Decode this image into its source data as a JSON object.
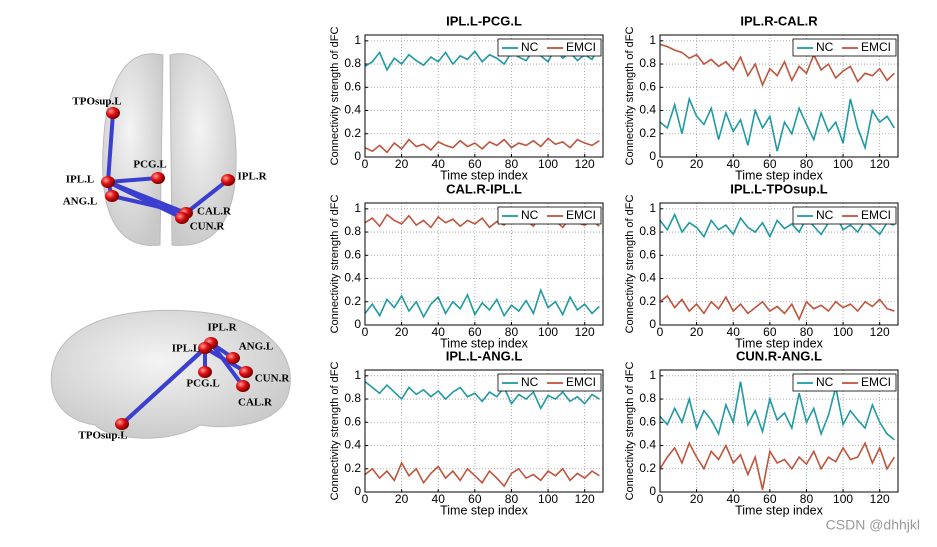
{
  "chart_data": [
    {
      "type": "line",
      "title": "IPL.L-PCG.L",
      "xlabel": "Time step index",
      "ylabel": "Connectivity strength of dFC",
      "x": [
        0,
        4,
        8,
        12,
        16,
        20,
        24,
        28,
        32,
        36,
        40,
        44,
        48,
        52,
        56,
        60,
        64,
        68,
        72,
        76,
        80,
        84,
        88,
        92,
        96,
        100,
        104,
        108,
        112,
        116,
        120,
        124,
        128
      ],
      "xlim": [
        0,
        130
      ],
      "xticks": [
        0,
        20,
        40,
        60,
        80,
        100,
        120
      ],
      "ylim": [
        0,
        1.05
      ],
      "yticks": [
        0,
        0.2,
        0.4,
        0.6,
        0.8,
        1
      ],
      "grid": true,
      "legend": "upper right",
      "series": [
        {
          "name": "NC",
          "color": "#1f9aa3",
          "values": [
            0.78,
            0.82,
            0.9,
            0.75,
            0.85,
            0.8,
            0.88,
            0.83,
            0.79,
            0.86,
            0.82,
            0.9,
            0.8,
            0.87,
            0.84,
            0.91,
            0.82,
            0.88,
            0.85,
            0.8,
            0.9,
            0.86,
            0.83,
            0.92,
            0.87,
            0.82,
            0.94,
            0.85,
            0.9,
            0.83,
            0.88,
            0.84,
            0.95
          ]
        },
        {
          "name": "EMCI",
          "color": "#c0543c",
          "values": [
            0.08,
            0.05,
            0.1,
            0.04,
            0.12,
            0.07,
            0.15,
            0.09,
            0.11,
            0.06,
            0.13,
            0.1,
            0.08,
            0.14,
            0.09,
            0.12,
            0.07,
            0.13,
            0.1,
            0.15,
            0.08,
            0.12,
            0.1,
            0.14,
            0.09,
            0.16,
            0.11,
            0.13,
            0.08,
            0.15,
            0.12,
            0.1,
            0.14
          ]
        }
      ]
    },
    {
      "type": "line",
      "title": "IPL.R-CAL.R",
      "xlabel": "Time step index",
      "ylabel": "Connectivity strength of dFC",
      "x": [
        0,
        4,
        8,
        12,
        16,
        20,
        24,
        28,
        32,
        36,
        40,
        44,
        48,
        52,
        56,
        60,
        64,
        68,
        72,
        76,
        80,
        84,
        88,
        92,
        96,
        100,
        104,
        108,
        112,
        116,
        120,
        124,
        128
      ],
      "xlim": [
        0,
        130
      ],
      "xticks": [
        0,
        20,
        40,
        60,
        80,
        100,
        120
      ],
      "ylim": [
        0,
        1.05
      ],
      "yticks": [
        0,
        0.2,
        0.4,
        0.6,
        0.8,
        1
      ],
      "grid": true,
      "legend": "upper right",
      "series": [
        {
          "name": "NC",
          "color": "#1f9aa3",
          "values": [
            0.3,
            0.25,
            0.45,
            0.2,
            0.5,
            0.35,
            0.28,
            0.42,
            0.15,
            0.38,
            0.22,
            0.32,
            0.1,
            0.4,
            0.25,
            0.35,
            0.05,
            0.3,
            0.2,
            0.42,
            0.28,
            0.15,
            0.38,
            0.22,
            0.3,
            0.12,
            0.5,
            0.25,
            0.08,
            0.4,
            0.3,
            0.35,
            0.25
          ]
        },
        {
          "name": "EMCI",
          "color": "#c0543c",
          "values": [
            0.97,
            0.95,
            0.92,
            0.9,
            0.85,
            0.88,
            0.8,
            0.84,
            0.78,
            0.82,
            0.75,
            0.86,
            0.7,
            0.8,
            0.62,
            0.76,
            0.7,
            0.82,
            0.66,
            0.78,
            0.72,
            0.88,
            0.75,
            0.8,
            0.68,
            0.74,
            0.78,
            0.65,
            0.72,
            0.7,
            0.76,
            0.66,
            0.72
          ]
        }
      ]
    },
    {
      "type": "line",
      "title": "CAL.R-IPL.L",
      "xlabel": "Time step index",
      "ylabel": "Connectivity strength of dFC",
      "x": [
        0,
        4,
        8,
        12,
        16,
        20,
        24,
        28,
        32,
        36,
        40,
        44,
        48,
        52,
        56,
        60,
        64,
        68,
        72,
        76,
        80,
        84,
        88,
        92,
        96,
        100,
        104,
        108,
        112,
        116,
        120,
        124,
        128
      ],
      "xlim": [
        0,
        130
      ],
      "xticks": [
        0,
        20,
        40,
        60,
        80,
        100,
        120
      ],
      "ylim": [
        0,
        1.05
      ],
      "yticks": [
        0,
        0.2,
        0.4,
        0.6,
        0.8,
        1
      ],
      "grid": true,
      "legend": "upper right",
      "series": [
        {
          "name": "NC",
          "color": "#1f9aa3",
          "values": [
            0.1,
            0.18,
            0.08,
            0.22,
            0.15,
            0.25,
            0.12,
            0.2,
            0.07,
            0.18,
            0.24,
            0.1,
            0.2,
            0.14,
            0.26,
            0.09,
            0.19,
            0.13,
            0.22,
            0.08,
            0.17,
            0.12,
            0.21,
            0.1,
            0.3,
            0.15,
            0.2,
            0.09,
            0.24,
            0.13,
            0.18,
            0.1,
            0.16
          ]
        },
        {
          "name": "EMCI",
          "color": "#c0543c",
          "values": [
            0.88,
            0.92,
            0.85,
            0.95,
            0.9,
            0.87,
            0.94,
            0.86,
            0.9,
            0.84,
            0.93,
            0.88,
            0.91,
            0.85,
            0.9,
            0.87,
            0.92,
            0.84,
            0.89,
            0.86,
            0.93,
            0.88,
            0.9,
            0.85,
            0.95,
            0.87,
            0.9,
            0.84,
            0.92,
            0.88,
            0.86,
            0.9,
            0.85
          ]
        }
      ]
    },
    {
      "type": "line",
      "title": "IPL.L-TPOsup.L",
      "xlabel": "Time step index",
      "ylabel": "Connectivity strength of dFC",
      "x": [
        0,
        4,
        8,
        12,
        16,
        20,
        24,
        28,
        32,
        36,
        40,
        44,
        48,
        52,
        56,
        60,
        64,
        68,
        72,
        76,
        80,
        84,
        88,
        92,
        96,
        100,
        104,
        108,
        112,
        116,
        120,
        124,
        128
      ],
      "xlim": [
        0,
        130
      ],
      "xticks": [
        0,
        20,
        40,
        60,
        80,
        100,
        120
      ],
      "ylim": [
        0,
        1.05
      ],
      "yticks": [
        0,
        0.2,
        0.4,
        0.6,
        0.8,
        1
      ],
      "grid": true,
      "legend": "upper right",
      "series": [
        {
          "name": "NC",
          "color": "#1f9aa3",
          "values": [
            0.9,
            0.82,
            0.95,
            0.8,
            0.88,
            0.84,
            0.76,
            0.9,
            0.82,
            0.86,
            0.78,
            0.92,
            0.84,
            0.8,
            0.88,
            0.76,
            0.9,
            0.83,
            0.87,
            0.8,
            0.92,
            0.85,
            0.78,
            0.88,
            0.95,
            0.82,
            0.86,
            0.8,
            0.9,
            0.84,
            0.78,
            0.88,
            0.86
          ]
        },
        {
          "name": "EMCI",
          "color": "#c0543c",
          "values": [
            0.2,
            0.25,
            0.15,
            0.22,
            0.12,
            0.18,
            0.1,
            0.2,
            0.14,
            0.24,
            0.12,
            0.18,
            0.1,
            0.15,
            0.2,
            0.12,
            0.16,
            0.1,
            0.18,
            0.05,
            0.2,
            0.14,
            0.17,
            0.12,
            0.2,
            0.15,
            0.18,
            0.12,
            0.2,
            0.16,
            0.22,
            0.14,
            0.12
          ]
        }
      ]
    },
    {
      "type": "line",
      "title": "IPL.L-ANG.L",
      "xlabel": "Time step index",
      "ylabel": "Connectivity strength of dFC",
      "x": [
        0,
        4,
        8,
        12,
        16,
        20,
        24,
        28,
        32,
        36,
        40,
        44,
        48,
        52,
        56,
        60,
        64,
        68,
        72,
        76,
        80,
        84,
        88,
        92,
        96,
        100,
        104,
        108,
        112,
        116,
        120,
        124,
        128
      ],
      "xlim": [
        0,
        130
      ],
      "xticks": [
        0,
        20,
        40,
        60,
        80,
        100,
        120
      ],
      "ylim": [
        0,
        1.05
      ],
      "yticks": [
        0,
        0.2,
        0.4,
        0.6,
        0.8,
        1
      ],
      "grid": true,
      "legend": "upper right",
      "series": [
        {
          "name": "NC",
          "color": "#1f9aa3",
          "values": [
            0.95,
            0.9,
            0.85,
            0.92,
            0.86,
            0.8,
            0.9,
            0.84,
            0.88,
            0.82,
            0.87,
            0.8,
            0.86,
            0.9,
            0.82,
            0.85,
            0.78,
            0.86,
            0.82,
            0.9,
            0.76,
            0.84,
            0.8,
            0.86,
            0.72,
            0.83,
            0.8,
            0.86,
            0.78,
            0.82,
            0.76,
            0.84,
            0.8
          ]
        },
        {
          "name": "EMCI",
          "color": "#c0543c",
          "values": [
            0.15,
            0.2,
            0.12,
            0.18,
            0.1,
            0.25,
            0.14,
            0.2,
            0.08,
            0.16,
            0.22,
            0.12,
            0.18,
            0.1,
            0.2,
            0.14,
            0.08,
            0.18,
            0.12,
            0.05,
            0.16,
            0.2,
            0.12,
            0.15,
            0.1,
            0.18,
            0.14,
            0.2,
            0.1,
            0.16,
            0.12,
            0.18,
            0.14
          ]
        }
      ]
    },
    {
      "type": "line",
      "title": "CUN.R-ANG.L",
      "xlabel": "Time step index",
      "ylabel": "Connectivity strength of dFC",
      "x": [
        0,
        4,
        8,
        12,
        16,
        20,
        24,
        28,
        32,
        36,
        40,
        44,
        48,
        52,
        56,
        60,
        64,
        68,
        72,
        76,
        80,
        84,
        88,
        92,
        96,
        100,
        104,
        108,
        112,
        116,
        120,
        124,
        128
      ],
      "xlim": [
        0,
        130
      ],
      "xticks": [
        0,
        20,
        40,
        60,
        80,
        100,
        120
      ],
      "ylim": [
        0,
        1.05
      ],
      "yticks": [
        0,
        0.2,
        0.4,
        0.6,
        0.8,
        1
      ],
      "grid": true,
      "legend": "upper right",
      "series": [
        {
          "name": "NC",
          "color": "#1f9aa3",
          "values": [
            0.65,
            0.58,
            0.72,
            0.6,
            0.8,
            0.55,
            0.7,
            0.62,
            0.5,
            0.75,
            0.6,
            0.95,
            0.58,
            0.7,
            0.52,
            0.8,
            0.62,
            0.68,
            0.55,
            0.85,
            0.6,
            0.72,
            0.5,
            0.66,
            0.9,
            0.58,
            0.7,
            0.62,
            0.55,
            0.75,
            0.6,
            0.5,
            0.45
          ]
        },
        {
          "name": "EMCI",
          "color": "#c0543c",
          "values": [
            0.2,
            0.3,
            0.38,
            0.25,
            0.42,
            0.3,
            0.2,
            0.35,
            0.28,
            0.4,
            0.25,
            0.32,
            0.15,
            0.3,
            0.02,
            0.35,
            0.25,
            0.28,
            0.2,
            0.3,
            0.24,
            0.35,
            0.2,
            0.3,
            0.26,
            0.38,
            0.28,
            0.3,
            0.42,
            0.25,
            0.38,
            0.2,
            0.3
          ]
        }
      ]
    }
  ],
  "brain_axial": {
    "labels": [
      "TPOsup.L",
      "PCG.L",
      "IPL.L",
      "IPL.R",
      "ANG.L",
      "CAL.R",
      "CUN.R"
    ]
  },
  "brain_sagittal": {
    "labels": [
      "IPL.R",
      "IPL.L",
      "ANG.L",
      "PCG.L",
      "CUN.R",
      "CAL.R",
      "TPOsup.L"
    ]
  },
  "watermark": "CSDN @dhhjkl"
}
